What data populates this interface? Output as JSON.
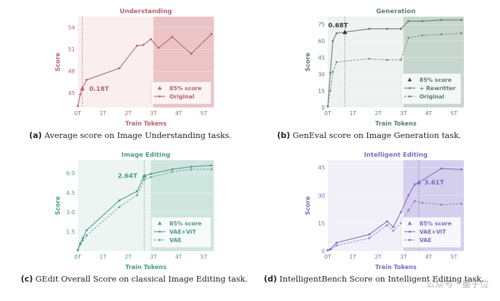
{
  "chart_data": [
    {
      "type": "line",
      "title": "Understanding",
      "xlabel": "Train Tokens",
      "ylabel": "Score",
      "xlim": [
        0,
        5.4
      ],
      "ylim": [
        43,
        55.5
      ],
      "xticks": [
        "0T",
        "1T",
        "2T",
        "3T",
        "4T",
        "5T"
      ],
      "yticks": [
        "45",
        "48",
        "51",
        "54"
      ],
      "ytick_values": [
        45,
        48,
        51,
        54
      ],
      "color": "#b5646f",
      "plot_bg": "#faeeee",
      "shade_from": 3.0,
      "shade_color": "#ecc3c6",
      "marker_x": 0.18,
      "marker_y": 45.6,
      "marker_label": "0.18T",
      "legend_position": "lower-right",
      "series": [
        {
          "name": "Original",
          "style": "solid",
          "x": [
            0,
            0.1,
            0.18,
            0.35,
            1.65,
            2.35,
            2.6,
            2.9,
            3.2,
            3.75,
            4.5,
            5.3
          ],
          "y": [
            43.2,
            44.8,
            45.6,
            46.8,
            48.4,
            51.5,
            51.6,
            52.4,
            51.2,
            52.7,
            50.4,
            53.1
          ]
        }
      ],
      "legend": [
        "85% score",
        "Original"
      ]
    },
    {
      "type": "line",
      "title": "Generation",
      "xlabel": "Train Tokens",
      "ylabel": "Score",
      "xlim": [
        0,
        5.4
      ],
      "ylim": [
        0,
        82
      ],
      "xticks": [
        "0T",
        "1T",
        "2T",
        "3T",
        "4T",
        "5T"
      ],
      "yticks": [
        "0",
        "15",
        "30",
        "45",
        "60",
        "75"
      ],
      "ytick_values": [
        0,
        15,
        30,
        45,
        60,
        75
      ],
      "color": "#5b7f72",
      "plot_bg": "#eef2f0",
      "shade_from": 3.0,
      "shade_color": "#c8d6d0",
      "marker_x": 0.68,
      "marker_y": 68,
      "marker_label": "0.68T",
      "legend_position": "lower-right",
      "series": [
        {
          "name": "+ Rewritter",
          "style": "solid",
          "x": [
            0,
            0.1,
            0.2,
            0.35,
            0.68,
            1.65,
            2.35,
            2.9,
            3.2,
            3.75,
            4.5,
            5.3
          ],
          "y": [
            1,
            31,
            60,
            67,
            68,
            71,
            71,
            71,
            78,
            78,
            79,
            79
          ]
        },
        {
          "name": "Original",
          "style": "dashed",
          "x": [
            0,
            0.1,
            0.2,
            0.35,
            1.65,
            2.35,
            2.9,
            3.2,
            3.75,
            4.5,
            5.3
          ],
          "y": [
            1,
            15,
            32,
            41,
            44,
            43,
            43,
            63,
            65,
            66,
            67
          ]
        }
      ],
      "legend": [
        "85% score",
        "+ Rewritter",
        "Original"
      ]
    },
    {
      "type": "line",
      "title": "Image Editing",
      "xlabel": "Train Tokens",
      "ylabel": "Score",
      "xlim": [
        0,
        5.4
      ],
      "ylim": [
        0,
        7
      ],
      "xticks": [
        "0T",
        "1T",
        "2T",
        "3T",
        "4T",
        "5T"
      ],
      "yticks": [
        "1.5",
        "3.0",
        "4.5",
        "6.0"
      ],
      "ytick_values": [
        1.5,
        3.0,
        4.5,
        6.0
      ],
      "color": "#4e9a88",
      "plot_bg": "#ecf5f2",
      "shade_from": 2.9,
      "shade_color": "#cfe6df",
      "marker_x": 2.64,
      "marker_y": 5.8,
      "marker_label": "2.64T",
      "legend_position": "lower-right",
      "series": [
        {
          "name": "VAE+ViT",
          "style": "solid",
          "x": [
            0,
            0.1,
            0.2,
            0.35,
            1.65,
            2.35,
            2.64,
            2.9,
            3.75,
            4.5,
            5.3
          ],
          "y": [
            0.1,
            0.6,
            1.0,
            1.6,
            3.9,
            4.6,
            5.8,
            5.95,
            6.3,
            6.5,
            6.6
          ]
        },
        {
          "name": "VAE",
          "style": "dashed",
          "x": [
            0,
            0.1,
            0.2,
            0.35,
            1.65,
            2.35,
            2.64,
            2.9,
            3.75,
            4.5,
            5.3
          ],
          "y": [
            0.05,
            0.5,
            0.8,
            1.2,
            3.4,
            4.3,
            5.5,
            5.7,
            6.1,
            6.3,
            6.3
          ]
        }
      ],
      "legend": [
        "85% score",
        "VAE+ViT",
        "VAE"
      ]
    },
    {
      "type": "line",
      "title": "Intelligent Editing",
      "xlabel": "Train Tokens",
      "ylabel": "Score",
      "xlim": [
        0,
        5.4
      ],
      "ylim": [
        0,
        49
      ],
      "xticks": [
        "0T",
        "1T",
        "2T",
        "3T",
        "4T",
        "5T"
      ],
      "yticks": [
        "0",
        "15",
        "30",
        "45"
      ],
      "ytick_values": [
        0,
        15,
        30,
        45
      ],
      "color": "#7e6cc0",
      "plot_bg": "#f1eff8",
      "shade_from": 3.0,
      "shade_color": "#d5cfee",
      "marker_x": 3.61,
      "marker_y": 37,
      "marker_label": "3.61T",
      "legend_position": "lower-right",
      "series": [
        {
          "name": "VAE+ViT",
          "style": "solid",
          "x": [
            0,
            0.1,
            0.35,
            1.65,
            2.35,
            2.6,
            2.9,
            3.2,
            3.45,
            3.61,
            4.5,
            5.3
          ],
          "y": [
            0.5,
            1,
            4.5,
            9,
            16,
            13,
            21,
            30,
            36,
            37,
            44.5,
            44
          ]
        },
        {
          "name": "VAE",
          "style": "dashed",
          "x": [
            0,
            0.1,
            0.35,
            1.65,
            2.35,
            2.6,
            2.9,
            3.2,
            3.45,
            3.75,
            4.5,
            5.3
          ],
          "y": [
            0.3,
            0.8,
            3,
            7,
            14,
            11,
            15,
            22,
            27,
            26,
            25,
            25.5
          ]
        }
      ],
      "legend": [
        "85% score",
        "VAE+ViT",
        "VAE"
      ]
    }
  ],
  "captions": [
    {
      "tag": "(a)",
      "text": "Average score on Image Understanding tasks."
    },
    {
      "tag": "(b)",
      "text": "GenEval score on Image Generation task."
    },
    {
      "tag": "(c)",
      "text": "GEdit Overall Score on classical Image Editing task."
    },
    {
      "tag": "(d)",
      "text": "IntelligentBench Score on Intelligent Editing task."
    }
  ],
  "watermark": "公众号 · 量子位"
}
